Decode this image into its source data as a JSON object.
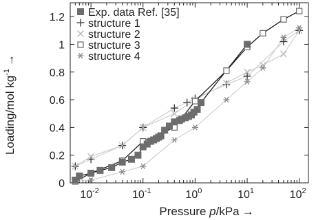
{
  "chart_data": {
    "type": "scatter",
    "xscale": "log",
    "xlim": [
      0.004,
      150
    ],
    "ylim": [
      0,
      1.3
    ],
    "xlabel_main": "Pressure ",
    "xlabel_italic": "p",
    "xlabel_unit": "/kPa",
    "xlabel_arrow": "→",
    "ylabel_main": "Loading/mol kg",
    "ylabel_sup": "-1",
    "ylabel_arrow": "→",
    "x_ticks": [
      {
        "value": 0.01,
        "base": "10",
        "exp": "-2"
      },
      {
        "value": 0.1,
        "base": "10",
        "exp": "-1"
      },
      {
        "value": 1,
        "base": "10",
        "exp": "0"
      },
      {
        "value": 10,
        "base": "10",
        "exp": "1"
      },
      {
        "value": 100,
        "base": "10",
        "exp": "2"
      }
    ],
    "y_ticks": [
      {
        "value": 0,
        "label": "0"
      },
      {
        "value": 0.2,
        "label": "0.2"
      },
      {
        "value": 0.4,
        "label": "0.4"
      },
      {
        "value": 0.6,
        "label": "0.6"
      },
      {
        "value": 0.8,
        "label": "0.8"
      },
      {
        "value": 1.0,
        "label": "1"
      },
      {
        "value": 1.2,
        "label": "1.2"
      }
    ],
    "grid": false,
    "legend_position": "top-left",
    "series": [
      {
        "name": "Exp. data Ref. [35]",
        "marker": "filled-square",
        "color": "#6d6d6d",
        "line": true,
        "line_color": "#1a1a1a",
        "x": [
          0.005,
          0.006,
          0.01,
          0.015,
          0.025,
          0.04,
          0.06,
          0.08,
          0.1,
          0.12,
          0.14,
          0.16,
          0.18,
          0.2,
          0.22,
          0.26,
          0.32,
          0.4,
          0.5,
          0.55,
          0.65,
          0.75,
          0.85,
          0.95,
          1.1,
          1.3,
          10
        ],
        "y": [
          0.02,
          0.05,
          0.07,
          0.09,
          0.11,
          0.15,
          0.17,
          0.2,
          0.26,
          0.28,
          0.3,
          0.31,
          0.32,
          0.33,
          0.34,
          0.38,
          0.41,
          0.44,
          0.45,
          0.46,
          0.47,
          0.48,
          0.49,
          0.51,
          0.53,
          0.58,
          1.0
        ]
      },
      {
        "name": "structure 1",
        "marker": "plus",
        "color": "#333333",
        "line": true,
        "line_color": "#d0d0d0",
        "x": [
          0.005,
          0.01,
          0.04,
          0.1,
          0.4,
          0.7,
          1.0,
          4.0,
          10,
          50,
          100
        ],
        "y": [
          0.12,
          0.17,
          0.27,
          0.4,
          0.54,
          0.58,
          0.61,
          0.71,
          0.77,
          1.02,
          1.1
        ]
      },
      {
        "name": "structure 2",
        "marker": "cross",
        "color": "#b8b8b8",
        "line": true,
        "line_color": "#d0d0d0",
        "x": [
          0.005,
          0.01,
          0.04,
          0.1,
          0.4,
          1.0,
          4.0,
          10,
          20,
          50,
          100
        ],
        "y": [
          0.12,
          0.19,
          0.27,
          0.4,
          0.5,
          0.6,
          0.72,
          0.8,
          0.85,
          0.93,
          1.1
        ]
      },
      {
        "name": "structure 3",
        "marker": "open-square",
        "color": "#666666",
        "line": true,
        "line_color": "#1a1a1a",
        "x": [
          0.005,
          0.01,
          0.04,
          0.1,
          0.4,
          1.0,
          4.0,
          10,
          20,
          50,
          100
        ],
        "y": [
          0.01,
          0.07,
          0.16,
          0.3,
          0.4,
          0.59,
          0.81,
          0.98,
          1.08,
          1.18,
          1.24
        ]
      },
      {
        "name": "structure 4",
        "marker": "asterisk",
        "color": "#8a8a8a",
        "line": true,
        "line_color": "#d0d0d0",
        "x": [
          0.005,
          0.01,
          0.04,
          0.1,
          0.4,
          1.0,
          4.0,
          10,
          20,
          50,
          100
        ],
        "y": [
          0.01,
          0.02,
          0.08,
          0.12,
          0.31,
          0.4,
          0.6,
          0.73,
          0.83,
          1.05,
          1.12
        ]
      }
    ]
  }
}
